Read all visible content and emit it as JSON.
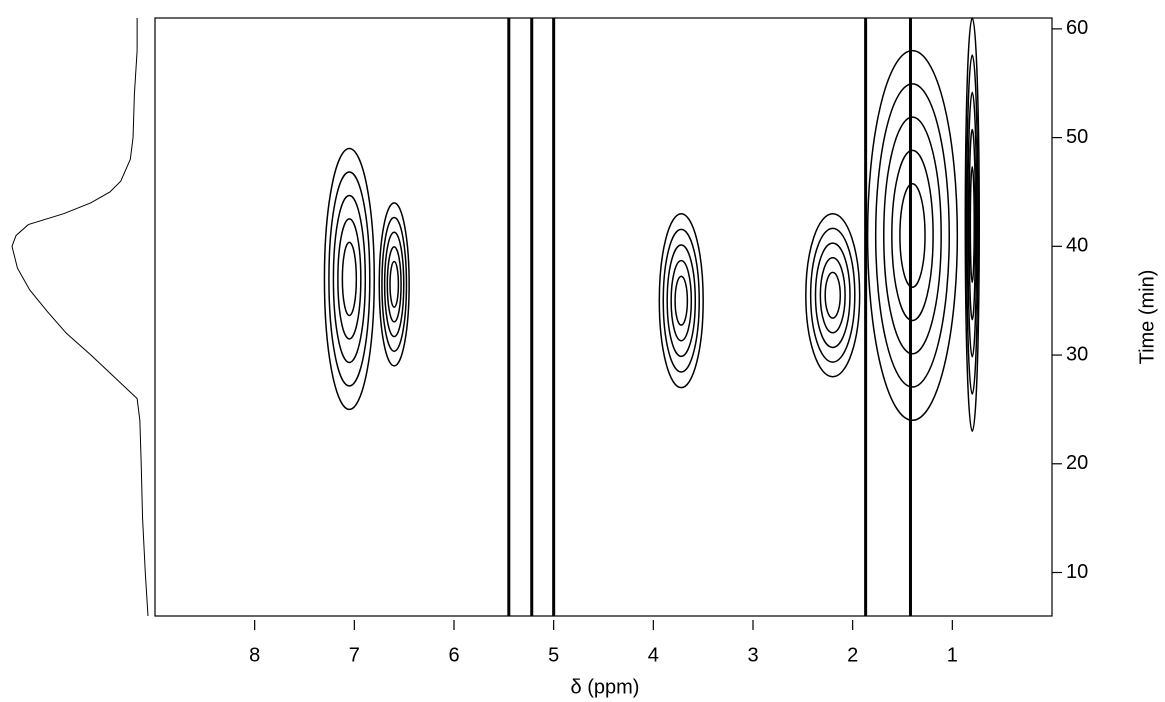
{
  "chart_data": {
    "type": "contour",
    "x_label": "δ (ppm)",
    "y_label": "Time (min)",
    "xlim": [
      9,
      0
    ],
    "xticks": [
      8,
      7,
      6,
      5,
      4,
      3,
      2,
      1
    ],
    "ylim": [
      6,
      61
    ],
    "yticks": [
      10,
      20,
      30,
      40,
      50,
      60
    ],
    "color": "#000000",
    "peaks": [
      {
        "x": 7.05,
        "y": 37,
        "dx": 0.25,
        "dy": 12
      },
      {
        "x": 6.6,
        "y": 36.5,
        "dx": 0.15,
        "dy": 7.5
      },
      {
        "x": 3.72,
        "y": 35,
        "dx": 0.22,
        "dy": 8
      },
      {
        "x": 2.2,
        "y": 35.5,
        "dx": 0.27,
        "dy": 7.5
      },
      {
        "x": 1.4,
        "y": 41,
        "dx": 0.45,
        "dy": 17
      },
      {
        "x": 0.8,
        "y": 42,
        "dx": 0.07,
        "dy": 19
      }
    ],
    "streaks": [
      5.45,
      5.22,
      5.0,
      1.87,
      1.42
    ],
    "projection": {
      "lim": [
        0,
        1
      ],
      "x": [
        6,
        10,
        15,
        20,
        24,
        26,
        28,
        30,
        32,
        34,
        36,
        38,
        40,
        41,
        42,
        43,
        44,
        45,
        46,
        48,
        50,
        54,
        58,
        61
      ],
      "values": [
        0,
        0.02,
        0.04,
        0.05,
        0.06,
        0.08,
        0.25,
        0.42,
        0.6,
        0.74,
        0.87,
        0.96,
        1,
        0.97,
        0.88,
        0.62,
        0.42,
        0.28,
        0.2,
        0.13,
        0.11,
        0.1,
        0.08,
        0.08
      ]
    }
  }
}
